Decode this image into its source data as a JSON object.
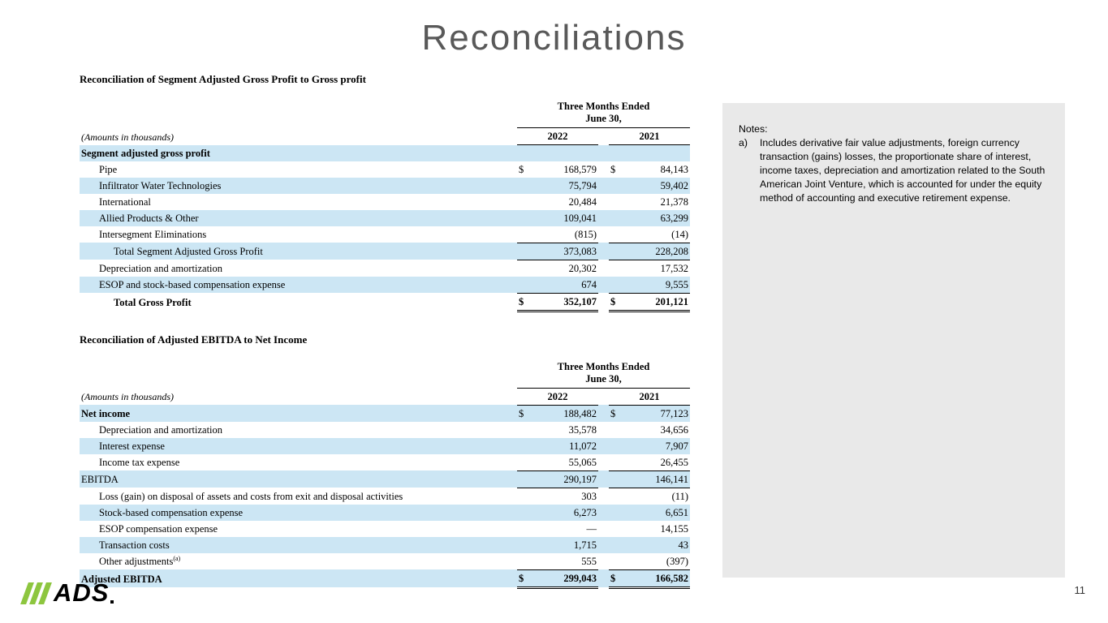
{
  "slide": {
    "title": "Reconciliations",
    "page_number": "11",
    "logo_text": "ADS"
  },
  "colors": {
    "row_highlight": "#cce6f4",
    "notes_bg": "#e9e9e9",
    "title_gray": "#595959",
    "logo_green": "#8dc63f"
  },
  "tables": [
    {
      "heading": "Reconciliation of Segment Adjusted Gross Profit to Gross profit",
      "period_header": "Three Months Ended\nJune 30,",
      "amounts_note": "(Amounts in thousands)",
      "col_2022": "2022",
      "col_2021": "2021",
      "rows": [
        {
          "label": "Segment adjusted gross profit",
          "labelBold": true,
          "shaded": true,
          "indent": 0,
          "v2022": "",
          "v2021": ""
        },
        {
          "label": "Pipe",
          "indent": 1,
          "dollar": true,
          "v2022": "168,579",
          "v2021": "84,143"
        },
        {
          "label": "Infiltrator Water Technologies",
          "indent": 1,
          "shaded": true,
          "v2022": "75,794",
          "v2021": "59,402"
        },
        {
          "label": "International",
          "indent": 1,
          "v2022": "20,484",
          "v2021": "21,378"
        },
        {
          "label": "Allied Products & Other",
          "indent": 1,
          "shaded": true,
          "v2022": "109,041",
          "v2021": "63,299"
        },
        {
          "label": "Intersegment Eliminations",
          "indent": 1,
          "rule": true,
          "v2022": "(815)",
          "v2021": "(14)"
        },
        {
          "label": "Total Segment Adjusted Gross Profit",
          "indent": 2,
          "shaded": true,
          "rule": true,
          "v2022": "373,083",
          "v2021": "228,208"
        },
        {
          "label": "Depreciation and amortization",
          "indent": 1,
          "v2022": "20,302",
          "v2021": "17,532"
        },
        {
          "label": "ESOP and stock-based compensation expense",
          "indent": 1,
          "shaded": true,
          "rule": true,
          "v2022": "674",
          "v2021": "9,555"
        },
        {
          "label": "Total Gross Profit",
          "indent": 2,
          "bold": true,
          "dollar": true,
          "double": true,
          "v2022": "352,107",
          "v2021": "201,121"
        }
      ]
    },
    {
      "heading": "Reconciliation of Adjusted EBITDA to Net Income",
      "period_header": "Three Months Ended\nJune 30,",
      "amounts_note": "(Amounts in thousands)",
      "col_2022": "2022",
      "col_2021": "2021",
      "rows": [
        {
          "label": "Net income",
          "labelBold": true,
          "shaded": true,
          "dollar": true,
          "v2022": "188,482",
          "v2021": "77,123"
        },
        {
          "label": "Depreciation and amortization",
          "indent": 1,
          "v2022": "35,578",
          "v2021": "34,656"
        },
        {
          "label": "Interest expense",
          "indent": 1,
          "shaded": true,
          "v2022": "11,072",
          "v2021": "7,907"
        },
        {
          "label": "Income tax expense",
          "indent": 1,
          "rule": true,
          "v2022": "55,065",
          "v2021": "26,455"
        },
        {
          "label": "EBITDA",
          "indent": 0,
          "shaded": true,
          "rule": true,
          "v2022": "290,197",
          "v2021": "146,141"
        },
        {
          "label": "Loss (gain) on disposal of assets and costs from exit and disposal activities",
          "indent": 1,
          "v2022": "303",
          "v2021": "(11)"
        },
        {
          "label": "Stock-based compensation expense",
          "indent": 1,
          "shaded": true,
          "v2022": "6,273",
          "v2021": "6,651"
        },
        {
          "label": "ESOP compensation expense",
          "indent": 1,
          "v2022": "—",
          "v2021": "14,155"
        },
        {
          "label": "Transaction costs",
          "indent": 1,
          "shaded": true,
          "v2022": "1,715",
          "v2021": "43"
        },
        {
          "label": "Other adjustments",
          "sup": "(a)",
          "indent": 1,
          "rule": true,
          "v2022": "555",
          "v2021": "(397)"
        },
        {
          "label": "Adjusted EBITDA",
          "bold": true,
          "shaded": true,
          "dollar": true,
          "double": true,
          "v2022": "299,043",
          "v2021": "166,582"
        }
      ]
    }
  ],
  "notes": {
    "label": "Notes:",
    "items": [
      {
        "marker": "a)",
        "text": "Includes derivative fair value adjustments, foreign currency transaction (gains) losses, the proportionate share of interest, income taxes, depreciation and amortization related to the South American Joint Venture, which is accounted for under the equity method of accounting and executive retirement expense."
      }
    ]
  }
}
